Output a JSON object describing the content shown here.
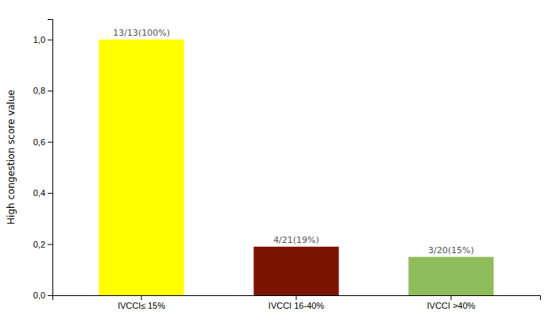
{
  "chart_data": {
    "type": "bar",
    "categories": [
      "IVCCl≤ 15%",
      "IVCCI 16-40%",
      "IVCCI >40%"
    ],
    "values": [
      1.0,
      0.19,
      0.15
    ],
    "colors": [
      "#ffff00",
      "#7a1500",
      "#8fbc5a"
    ],
    "data_labels": true,
    "value_labels": [
      "13/13(100%)",
      "4/21(19%)",
      "3/20(15%)"
    ],
    "ylabel": "High congestion score value",
    "ylim": [
      0.0,
      1.08
    ],
    "yticks": [
      {
        "value": 0.0,
        "label": "0,0"
      },
      {
        "value": 0.2,
        "label": "0,2"
      },
      {
        "value": 0.4,
        "label": "0,4"
      },
      {
        "value": 0.6,
        "label": "0,6"
      },
      {
        "value": 0.8,
        "label": "0,8"
      },
      {
        "value": 1.0,
        "label": "1,0"
      }
    ],
    "grid": false
  }
}
